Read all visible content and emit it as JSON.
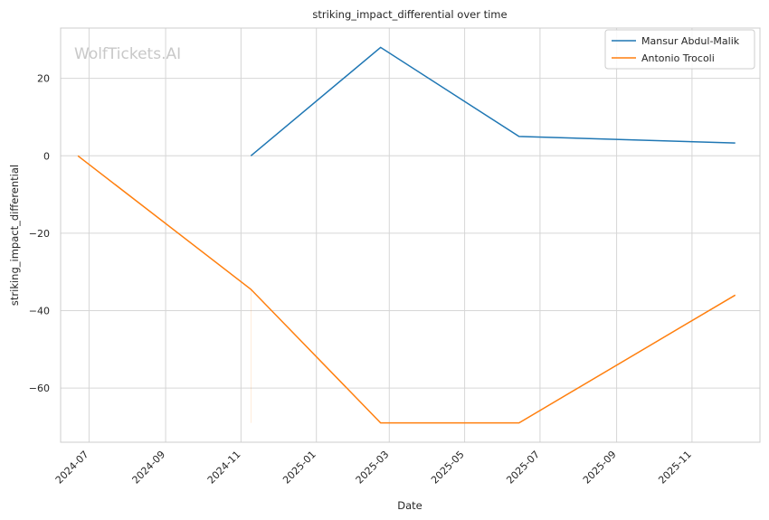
{
  "chart_data": {
    "type": "line",
    "title": "striking_impact_differential over time",
    "xlabel": "Date",
    "ylabel": "striking_impact_differential",
    "watermark": "WolfTickets.AI",
    "x_ticks": [
      "2024-07",
      "2024-09",
      "2024-11",
      "2025-01",
      "2025-03",
      "2025-05",
      "2025-07",
      "2025-09",
      "2025-11"
    ],
    "y_ticks": [
      20,
      0,
      -20,
      -40,
      -60
    ],
    "xlim": [
      "2024-06-08",
      "2025-12-26"
    ],
    "ylim": [
      -74,
      33
    ],
    "grid": true,
    "legend_position": "top-right",
    "series": [
      {
        "name": "Mansur Abdul-Malik",
        "color": "#1f77b4",
        "points": [
          {
            "x": "2024-11-09",
            "y": 0
          },
          {
            "x": "2025-02-22",
            "y": 28
          },
          {
            "x": "2025-06-14",
            "y": 5
          },
          {
            "x": "2025-12-06",
            "y": 3.3
          }
        ]
      },
      {
        "name": "Antonio Trocoli",
        "color": "#ff7f0e",
        "points": [
          {
            "x": "2024-06-22",
            "y": 0
          },
          {
            "x": "2024-11-09",
            "y": -34.5
          },
          {
            "x": "2025-02-22",
            "y": -69
          },
          {
            "x": "2025-06-14",
            "y": -69
          },
          {
            "x": "2025-12-06",
            "y": -36
          }
        ]
      }
    ]
  }
}
